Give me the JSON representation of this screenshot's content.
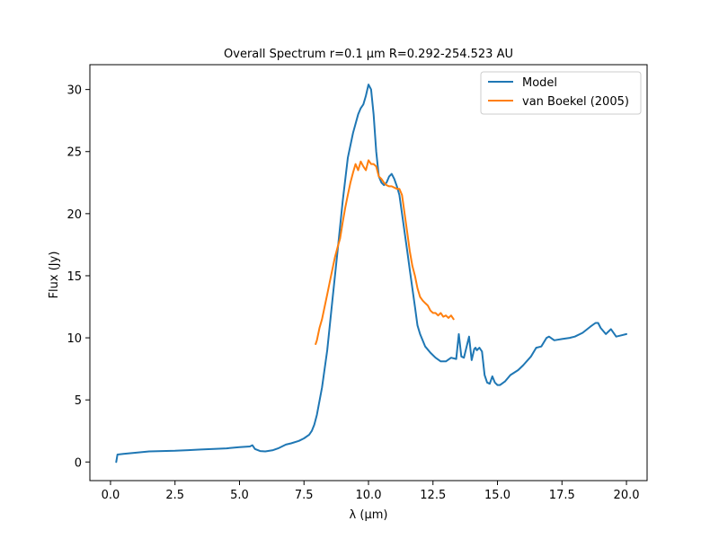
{
  "chart_data": {
    "type": "line",
    "title": "Overall Spectrum r=0.1 μm R=0.292-254.523 AU",
    "xlabel": "λ (μm)",
    "ylabel": "Flux (Jy)",
    "xlim": [
      -0.8,
      20.8
    ],
    "ylim": [
      -1.5,
      32
    ],
    "xticks": [
      0.0,
      2.5,
      5.0,
      7.5,
      10.0,
      12.5,
      15.0,
      17.5,
      20.0
    ],
    "xtick_labels": [
      "0.0",
      "2.5",
      "5.0",
      "7.5",
      "10.0",
      "12.5",
      "15.0",
      "17.5",
      "20.0"
    ],
    "yticks": [
      0,
      5,
      10,
      15,
      20,
      25,
      30
    ],
    "ytick_labels": [
      "0",
      "5",
      "10",
      "15",
      "20",
      "25",
      "30"
    ],
    "grid": false,
    "legend_position": "top-right",
    "series": [
      {
        "name": "Model",
        "color": "#1f77b4",
        "x": [
          0.22,
          0.27,
          0.5,
          1.0,
          1.5,
          2.0,
          2.5,
          3.0,
          3.5,
          4.0,
          4.5,
          5.0,
          5.4,
          5.5,
          5.6,
          5.8,
          6.0,
          6.3,
          6.5,
          6.8,
          7.0,
          7.3,
          7.5,
          7.7,
          7.8,
          7.9,
          8.0,
          8.2,
          8.4,
          8.6,
          8.8,
          9.0,
          9.2,
          9.4,
          9.6,
          9.7,
          9.8,
          9.9,
          10.0,
          10.1,
          10.2,
          10.3,
          10.4,
          10.5,
          10.6,
          10.7,
          10.8,
          10.9,
          11.0,
          11.1,
          11.2,
          11.3,
          11.4,
          11.5,
          11.6,
          11.7,
          11.8,
          11.9,
          12.0,
          12.2,
          12.4,
          12.6,
          12.8,
          13.0,
          13.2,
          13.4,
          13.5,
          13.6,
          13.7,
          13.9,
          14.0,
          14.1,
          14.15,
          14.2,
          14.3,
          14.4,
          14.5,
          14.6,
          14.7,
          14.8,
          14.9,
          15.0,
          15.1,
          15.3,
          15.5,
          15.8,
          16.0,
          16.3,
          16.5,
          16.7,
          16.9,
          17.0,
          17.2,
          17.5,
          17.8,
          18.0,
          18.3,
          18.6,
          18.8,
          18.9,
          19.0,
          19.2,
          19.4,
          19.6,
          19.8,
          20.0
        ],
        "values": [
          0.0,
          0.6,
          0.65,
          0.75,
          0.85,
          0.88,
          0.9,
          0.95,
          1.0,
          1.05,
          1.1,
          1.2,
          1.25,
          1.35,
          1.05,
          0.88,
          0.85,
          0.95,
          1.1,
          1.4,
          1.5,
          1.7,
          1.9,
          2.2,
          2.5,
          3.0,
          3.8,
          6.0,
          9.0,
          13.0,
          17.0,
          21.0,
          24.5,
          26.5,
          28.0,
          28.5,
          28.8,
          29.5,
          30.4,
          30.0,
          28.0,
          25.0,
          23.0,
          22.5,
          22.3,
          22.5,
          23.0,
          23.2,
          22.8,
          22.2,
          21.5,
          20.0,
          18.5,
          17.0,
          15.5,
          14.0,
          12.5,
          11.0,
          10.3,
          9.3,
          8.8,
          8.4,
          8.1,
          8.1,
          8.4,
          8.3,
          10.3,
          8.5,
          8.4,
          10.1,
          8.2,
          9.1,
          9.2,
          9.0,
          9.2,
          8.9,
          7.0,
          6.4,
          6.3,
          6.9,
          6.4,
          6.2,
          6.2,
          6.5,
          7.0,
          7.4,
          7.8,
          8.5,
          9.2,
          9.3,
          10.0,
          10.1,
          9.8,
          9.9,
          10.0,
          10.1,
          10.4,
          10.9,
          11.2,
          11.2,
          10.8,
          10.3,
          10.7,
          10.1,
          10.2,
          10.3
        ]
      },
      {
        "name": "van Boekel (2005)",
        "color": "#ff7f0e",
        "x": [
          7.95,
          8.0,
          8.1,
          8.2,
          8.3,
          8.4,
          8.5,
          8.6,
          8.7,
          8.8,
          8.9,
          9.0,
          9.1,
          9.2,
          9.3,
          9.4,
          9.5,
          9.6,
          9.7,
          9.8,
          9.9,
          10.0,
          10.1,
          10.2,
          10.3,
          10.4,
          10.5,
          10.6,
          10.7,
          10.8,
          10.9,
          11.0,
          11.1,
          11.2,
          11.3,
          11.4,
          11.5,
          11.6,
          11.7,
          11.8,
          11.9,
          12.0,
          12.1,
          12.2,
          12.3,
          12.4,
          12.5,
          12.6,
          12.7,
          12.8,
          12.9,
          13.0,
          13.1,
          13.2,
          13.3
        ],
        "values": [
          9.5,
          9.8,
          10.8,
          11.5,
          12.5,
          13.5,
          14.5,
          15.5,
          16.5,
          17.3,
          18.0,
          19.3,
          20.5,
          21.5,
          22.5,
          23.3,
          24.0,
          23.5,
          24.2,
          23.8,
          23.5,
          24.3,
          24.0,
          24.0,
          23.8,
          23.0,
          22.8,
          22.5,
          22.3,
          22.2,
          22.2,
          22.1,
          22.0,
          22.0,
          21.5,
          20.0,
          18.5,
          17.0,
          15.8,
          15.0,
          14.0,
          13.3,
          13.0,
          12.8,
          12.6,
          12.2,
          12.0,
          12.0,
          11.8,
          12.0,
          11.7,
          11.8,
          11.6,
          11.8,
          11.5
        ]
      }
    ]
  }
}
